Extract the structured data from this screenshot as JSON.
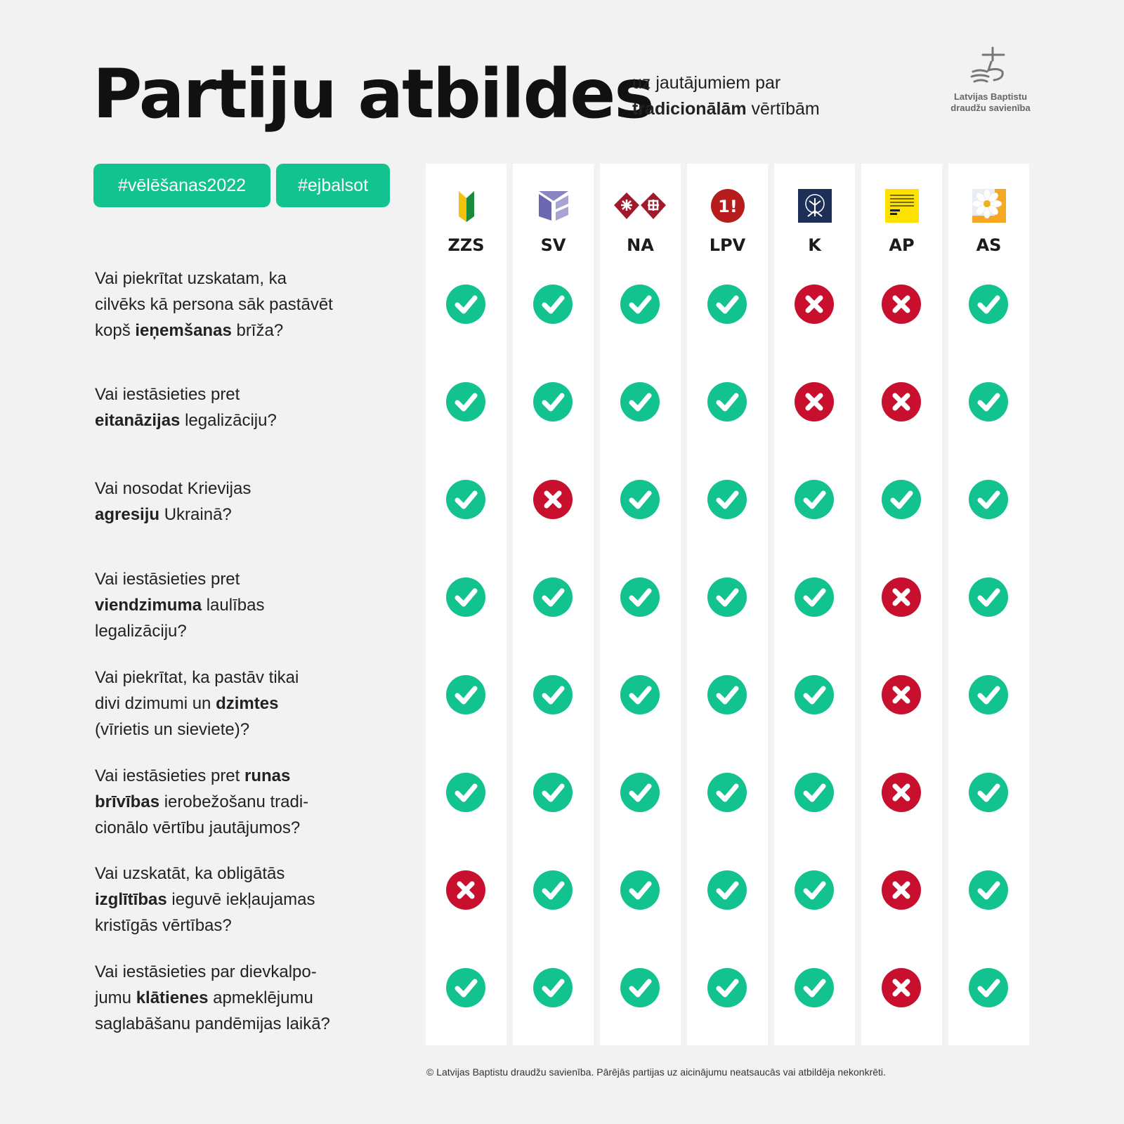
{
  "header": {
    "title": "Partiju atbildes",
    "subtitle_line1": "uz jautājumiem par",
    "subtitle_bold": "tradicionālām",
    "subtitle_rest": " vērtībām"
  },
  "logo": {
    "line1": "Latvijas Baptistu",
    "line2": "draudžu savienība"
  },
  "tags": [
    "#vēlēšanas2022",
    "#ejbalsot"
  ],
  "parties": [
    {
      "abbr": "ZZS",
      "icon": "zzs-logo-icon"
    },
    {
      "abbr": "SV",
      "icon": "sv-logo-icon"
    },
    {
      "abbr": "NA",
      "icon": "na-logo-icon"
    },
    {
      "abbr": "LPV",
      "icon": "lpv-logo-icon"
    },
    {
      "abbr": "K",
      "icon": "k-logo-icon"
    },
    {
      "abbr": "AP",
      "icon": "ap-logo-icon"
    },
    {
      "abbr": "AS",
      "icon": "as-logo-icon"
    }
  ],
  "questions": [
    {
      "parts": [
        [
          "Vai piekrītat uzskatam, ka ",
          false
        ],
        [
          "cilvēks kā persona sāk pastāvēt ",
          false
        ],
        [
          "kopš ",
          false
        ],
        [
          "ieņemšanas",
          true
        ],
        [
          " brīža?",
          false
        ]
      ],
      "lines": [
        [
          "Vai piekrītat uzskatam, ka"
        ],
        [
          "cilvēks kā persona sāk pastāvēt"
        ],
        [
          "kopš ",
          "ieņemšanas",
          " brīža?"
        ]
      ],
      "answers": [
        "yes",
        "yes",
        "yes",
        "yes",
        "no",
        "no",
        "yes"
      ]
    },
    {
      "lines": [
        [
          "Vai iestāsieties pret"
        ],
        [
          "",
          "eitanāzijas",
          " legalizāciju?"
        ]
      ],
      "answers": [
        "yes",
        "yes",
        "yes",
        "yes",
        "no",
        "no",
        "yes"
      ]
    },
    {
      "lines": [
        [
          "Vai nosodat Krievijas"
        ],
        [
          "",
          "agresiju",
          " Ukrainā?"
        ]
      ],
      "answers": [
        "yes",
        "no",
        "yes",
        "yes",
        "yes",
        "yes",
        "yes"
      ]
    },
    {
      "lines": [
        [
          "Vai iestāsieties pret"
        ],
        [
          "",
          "viendzimuma",
          " laulības"
        ],
        [
          "legalizāciju?"
        ]
      ],
      "answers": [
        "yes",
        "yes",
        "yes",
        "yes",
        "yes",
        "no",
        "yes"
      ]
    },
    {
      "lines": [
        [
          "Vai piekrītat, ka pastāv tikai"
        ],
        [
          "divi dzimumi un ",
          "dzimtes",
          ""
        ],
        [
          "(vīrietis un sieviete)?"
        ]
      ],
      "answers": [
        "yes",
        "yes",
        "yes",
        "yes",
        "yes",
        "no",
        "yes"
      ]
    },
    {
      "lines": [
        [
          "Vai iestāsieties pret ",
          "runas",
          ""
        ],
        [
          "",
          "brīvības",
          " ierobežošanu tradi-"
        ],
        [
          "cionālo vērtību jautājumos?"
        ]
      ],
      "answers": [
        "yes",
        "yes",
        "yes",
        "yes",
        "yes",
        "no",
        "yes"
      ]
    },
    {
      "lines": [
        [
          "Vai uzskatāt, ka obligātās"
        ],
        [
          "",
          "izglītības",
          " ieguvē iekļaujamas"
        ],
        [
          "kristīgās vērtības?"
        ]
      ],
      "answers": [
        "no",
        "yes",
        "yes",
        "yes",
        "yes",
        "no",
        "yes"
      ]
    },
    {
      "lines": [
        [
          "Vai iestāsieties par dievkalpo-"
        ],
        [
          "jumu ",
          "klātienes",
          " apmeklējumu"
        ],
        [
          "saglabāšanu pandēmijas laikā?"
        ]
      ],
      "answers": [
        "yes",
        "yes",
        "yes",
        "yes",
        "yes",
        "no",
        "yes"
      ]
    }
  ],
  "footer": "© Latvijas Baptistu draudžu savienība. Pārējās partijas uz aicinājumu neatsaucās vai atbildēja nekonkrēti.",
  "colors": {
    "yes": "#12c28f",
    "no": "#c8102e",
    "tag": "#12c28f",
    "background": "#f2f2f2"
  }
}
